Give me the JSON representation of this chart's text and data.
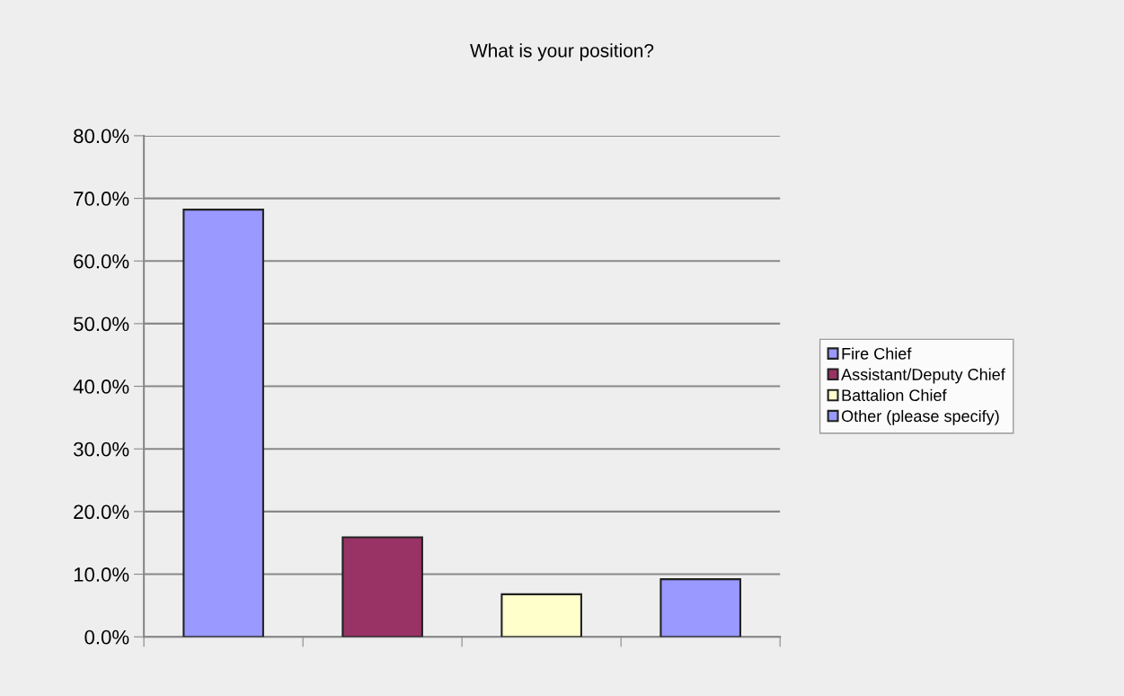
{
  "chart_data": {
    "type": "bar",
    "title": "What is your position?",
    "categories": [
      null,
      null,
      null,
      null
    ],
    "stacked": true,
    "series": [
      {
        "name": "Fire Chief",
        "color": "#9999ff",
        "values": [
          68.2,
          null,
          null,
          null
        ]
      },
      {
        "name": "Assistant/Deputy Chief",
        "color": "#993366",
        "values": [
          null,
          15.9,
          null,
          null
        ]
      },
      {
        "name": "Battalion Chief",
        "color": "#ffffcc",
        "values": [
          null,
          null,
          6.8,
          null
        ]
      },
      {
        "name": "Other (please specify)",
        "color": "#9999ff",
        "values": [
          null,
          null,
          null,
          9.2
        ]
      }
    ],
    "ylim": [
      0,
      80
    ],
    "yticks": [
      {
        "value": 0,
        "label": "0.0%"
      },
      {
        "value": 10,
        "label": "10.0%"
      },
      {
        "value": 20,
        "label": "20.0%"
      },
      {
        "value": 30,
        "label": "30.0%"
      },
      {
        "value": 40,
        "label": "40.0%"
      },
      {
        "value": 50,
        "label": "50.0%"
      },
      {
        "value": 60,
        "label": "60.0%"
      },
      {
        "value": 70,
        "label": "70.0%"
      },
      {
        "value": 80,
        "label": "80.0%"
      }
    ],
    "grid": "y",
    "legend": "right",
    "tick_labels": "y"
  }
}
